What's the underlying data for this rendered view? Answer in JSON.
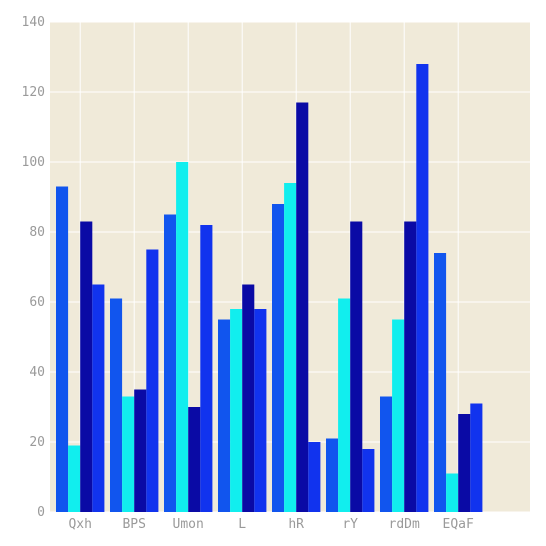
{
  "chart_data": {
    "type": "bar",
    "title": "",
    "xlabel": "",
    "ylabel": "",
    "categories": [
      "Qxh",
      "BPS",
      "Umon",
      "L",
      "hR",
      "rY",
      "rdDm",
      "EQaF"
    ],
    "ylim": [
      0,
      140
    ],
    "yticks": [
      0,
      20,
      40,
      60,
      80,
      100,
      120,
      140
    ],
    "grid": true,
    "legend": "none",
    "colors": {
      "background": "#f0ead9",
      "grid": "#ffffff",
      "tick_text": "#9a9a9a"
    },
    "series": [
      {
        "color": "#1155ee",
        "values": [
          93,
          61,
          85,
          55,
          88,
          21,
          33,
          74
        ]
      },
      {
        "color": "#11eeee",
        "values": [
          19,
          33,
          100,
          58,
          94,
          61,
          55,
          11
        ]
      },
      {
        "color": "#0a0aa5",
        "values": [
          83,
          35,
          30,
          65,
          117,
          83,
          83,
          28
        ]
      },
      {
        "color": "#1133ee",
        "values": [
          65,
          75,
          82,
          58,
          20,
          18,
          128,
          31
        ]
      }
    ]
  }
}
